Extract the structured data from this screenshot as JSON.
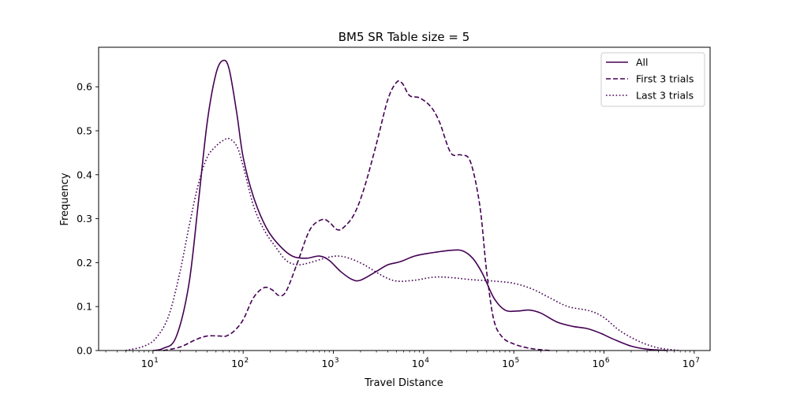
{
  "chart_data": {
    "type": "line",
    "title": "BM5 SR Table size = 5",
    "xlabel": "Travel Distance",
    "ylabel": "Frequency",
    "xscale": "log",
    "xlim": [
      2.5,
      15000000
    ],
    "ylim": [
      0,
      0.69
    ],
    "xticks": [
      {
        "value": 10,
        "base": "10",
        "exp": "1"
      },
      {
        "value": 100,
        "base": "10",
        "exp": "2"
      },
      {
        "value": 1000,
        "base": "10",
        "exp": "3"
      },
      {
        "value": 10000,
        "base": "10",
        "exp": "4"
      },
      {
        "value": 100000,
        "base": "10",
        "exp": "5"
      },
      {
        "value": 1000000,
        "base": "10",
        "exp": "6"
      },
      {
        "value": 10000000,
        "base": "10",
        "exp": "7"
      }
    ],
    "yticks": [
      "0.0",
      "0.1",
      "0.2",
      "0.3",
      "0.4",
      "0.5",
      "0.6"
    ],
    "yticks_values": [
      0.0,
      0.1,
      0.2,
      0.3,
      0.4,
      0.5,
      0.6
    ],
    "color": "#440154",
    "legend_position": "upper right",
    "grid": false,
    "series": [
      {
        "name": "All",
        "style": "solid",
        "points": [
          [
            10,
            0.0
          ],
          [
            13,
            0.005
          ],
          [
            18,
            0.03
          ],
          [
            25,
            0.15
          ],
          [
            32,
            0.34
          ],
          [
            40,
            0.52
          ],
          [
            50,
            0.63
          ],
          [
            60,
            0.66
          ],
          [
            70,
            0.64
          ],
          [
            85,
            0.54
          ],
          [
            100,
            0.44
          ],
          [
            130,
            0.35
          ],
          [
            180,
            0.28
          ],
          [
            250,
            0.24
          ],
          [
            350,
            0.215
          ],
          [
            500,
            0.21
          ],
          [
            700,
            0.215
          ],
          [
            900,
            0.205
          ],
          [
            1200,
            0.18
          ],
          [
            1600,
            0.162
          ],
          [
            2000,
            0.16
          ],
          [
            3000,
            0.18
          ],
          [
            4000,
            0.195
          ],
          [
            5500,
            0.202
          ],
          [
            8000,
            0.215
          ],
          [
            12000,
            0.222
          ],
          [
            20000,
            0.228
          ],
          [
            27000,
            0.227
          ],
          [
            35000,
            0.21
          ],
          [
            45000,
            0.175
          ],
          [
            60000,
            0.12
          ],
          [
            80000,
            0.092
          ],
          [
            110000,
            0.09
          ],
          [
            150000,
            0.092
          ],
          [
            200000,
            0.085
          ],
          [
            300000,
            0.065
          ],
          [
            450000,
            0.055
          ],
          [
            650000,
            0.05
          ],
          [
            900000,
            0.04
          ],
          [
            1300000,
            0.025
          ],
          [
            2000000,
            0.01
          ],
          [
            3000000,
            0.003
          ],
          [
            5000000,
            0.0
          ]
        ]
      },
      {
        "name": "First 3 trials",
        "style": "dashed",
        "points": [
          [
            13,
            0.0
          ],
          [
            20,
            0.008
          ],
          [
            30,
            0.025
          ],
          [
            40,
            0.033
          ],
          [
            55,
            0.033
          ],
          [
            65,
            0.033
          ],
          [
            80,
            0.045
          ],
          [
            100,
            0.07
          ],
          [
            130,
            0.12
          ],
          [
            170,
            0.143
          ],
          [
            210,
            0.138
          ],
          [
            250,
            0.125
          ],
          [
            300,
            0.135
          ],
          [
            400,
            0.2
          ],
          [
            550,
            0.275
          ],
          [
            750,
            0.298
          ],
          [
            900,
            0.292
          ],
          [
            1100,
            0.275
          ],
          [
            1300,
            0.28
          ],
          [
            1700,
            0.31
          ],
          [
            2200,
            0.37
          ],
          [
            3000,
            0.47
          ],
          [
            4000,
            0.57
          ],
          [
            5000,
            0.61
          ],
          [
            5800,
            0.608
          ],
          [
            7000,
            0.58
          ],
          [
            9000,
            0.575
          ],
          [
            12000,
            0.555
          ],
          [
            15000,
            0.52
          ],
          [
            20000,
            0.45
          ],
          [
            26000,
            0.445
          ],
          [
            33000,
            0.43
          ],
          [
            42000,
            0.33
          ],
          [
            50000,
            0.18
          ],
          [
            60000,
            0.07
          ],
          [
            75000,
            0.03
          ],
          [
            100000,
            0.015
          ],
          [
            150000,
            0.005
          ],
          [
            250000,
            0.0
          ]
        ]
      },
      {
        "name": "Last 3 trials",
        "style": "dotted",
        "points": [
          [
            5,
            0.0
          ],
          [
            8,
            0.01
          ],
          [
            11,
            0.03
          ],
          [
            15,
            0.08
          ],
          [
            20,
            0.18
          ],
          [
            25,
            0.28
          ],
          [
            32,
            0.38
          ],
          [
            40,
            0.44
          ],
          [
            50,
            0.465
          ],
          [
            60,
            0.478
          ],
          [
            70,
            0.482
          ],
          [
            85,
            0.465
          ],
          [
            100,
            0.42
          ],
          [
            130,
            0.33
          ],
          [
            170,
            0.275
          ],
          [
            230,
            0.235
          ],
          [
            300,
            0.205
          ],
          [
            400,
            0.195
          ],
          [
            550,
            0.2
          ],
          [
            800,
            0.21
          ],
          [
            1100,
            0.215
          ],
          [
            1500,
            0.21
          ],
          [
            2200,
            0.195
          ],
          [
            3500,
            0.17
          ],
          [
            5000,
            0.158
          ],
          [
            8000,
            0.16
          ],
          [
            13000,
            0.167
          ],
          [
            20000,
            0.166
          ],
          [
            35000,
            0.161
          ],
          [
            60000,
            0.158
          ],
          [
            100000,
            0.153
          ],
          [
            160000,
            0.14
          ],
          [
            250000,
            0.12
          ],
          [
            400000,
            0.1
          ],
          [
            700000,
            0.09
          ],
          [
            1000000,
            0.075
          ],
          [
            1500000,
            0.045
          ],
          [
            2500000,
            0.02
          ],
          [
            4000000,
            0.006
          ],
          [
            7000000,
            0.0
          ]
        ]
      }
    ]
  }
}
